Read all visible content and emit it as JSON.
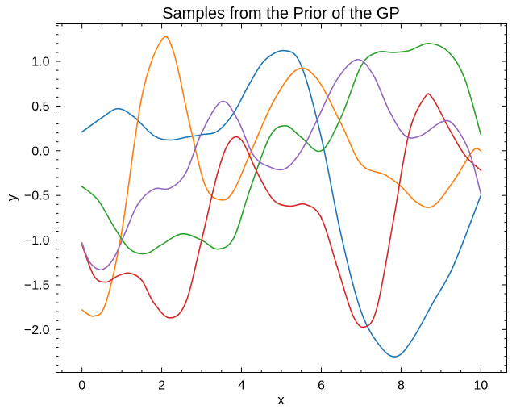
{
  "chart_data": {
    "type": "line",
    "title": "Samples from the Prior of the GP",
    "xlabel": "x",
    "ylabel": "y",
    "xlim": [
      -0.65,
      10.65
    ],
    "ylim": [
      -2.48,
      1.42
    ],
    "xticks": [
      0,
      2,
      4,
      6,
      8,
      10
    ],
    "xtick_labels": [
      "0",
      "2",
      "4",
      "6",
      "8",
      "10"
    ],
    "yticks": [
      -2.0,
      -1.5,
      -1.0,
      -0.5,
      0.0,
      0.5,
      1.0
    ],
    "ytick_labels": [
      "−2.0",
      "−1.5",
      "−1.0",
      "−0.5",
      "0.0",
      "0.5",
      "1.0"
    ],
    "grid": false,
    "legend": "none",
    "series": [
      {
        "color": "#1f77b4",
        "x": [
          0,
          0.5,
          0.9,
          1.3,
          1.8,
          2.2,
          2.6,
          3.0,
          3.4,
          3.8,
          4.2,
          4.6,
          5.1,
          5.5,
          6.0,
          6.5,
          7.0,
          7.5,
          7.9,
          8.3,
          8.8,
          9.3,
          10.0
        ],
        "y": [
          0.21,
          0.37,
          0.47,
          0.38,
          0.17,
          0.12,
          0.15,
          0.18,
          0.22,
          0.42,
          0.75,
          1.02,
          1.12,
          0.95,
          0.15,
          -0.95,
          -1.8,
          -2.2,
          -2.3,
          -2.1,
          -1.7,
          -1.3,
          -0.5
        ]
      },
      {
        "color": "#ff7f0e",
        "x": [
          0,
          0.3,
          0.6,
          1.0,
          1.5,
          2.0,
          2.3,
          2.7,
          3.1,
          3.5,
          3.8,
          4.2,
          4.8,
          5.4,
          5.9,
          6.5,
          7.0,
          7.6,
          8.0,
          8.4,
          8.8,
          9.3,
          9.8,
          10.0
        ],
        "y": [
          -1.78,
          -1.85,
          -1.7,
          -0.9,
          0.6,
          1.24,
          1.1,
          0.3,
          -0.4,
          -0.55,
          -0.45,
          -0.05,
          0.55,
          0.91,
          0.8,
          0.3,
          -0.15,
          -0.27,
          -0.4,
          -0.58,
          -0.62,
          -0.35,
          0.0,
          0.0
        ]
      },
      {
        "color": "#2ca02c",
        "x": [
          0,
          0.4,
          0.8,
          1.2,
          1.6,
          2.0,
          2.5,
          3.0,
          3.4,
          3.8,
          4.2,
          4.7,
          5.1,
          5.5,
          6.0,
          6.5,
          7.0,
          7.4,
          7.8,
          8.2,
          8.7,
          9.2,
          9.6,
          10.0
        ],
        "y": [
          -0.4,
          -0.55,
          -0.85,
          -1.1,
          -1.15,
          -1.05,
          -0.93,
          -1.0,
          -1.1,
          -0.98,
          -0.45,
          0.15,
          0.28,
          0.15,
          0.0,
          0.38,
          0.95,
          1.1,
          1.1,
          1.12,
          1.2,
          1.1,
          0.8,
          0.18
        ]
      },
      {
        "color": "#d62728",
        "x": [
          0,
          0.3,
          0.6,
          0.9,
          1.2,
          1.5,
          1.8,
          2.2,
          2.6,
          3.0,
          3.4,
          3.7,
          4.0,
          4.4,
          4.8,
          5.2,
          5.6,
          6.0,
          6.4,
          6.8,
          7.1,
          7.4,
          7.8,
          8.2,
          8.6,
          8.8,
          9.2,
          9.6,
          10.0
        ],
        "y": [
          -1.05,
          -1.4,
          -1.47,
          -1.4,
          -1.37,
          -1.45,
          -1.7,
          -1.87,
          -1.7,
          -1.0,
          -0.25,
          0.1,
          0.12,
          -0.25,
          -0.55,
          -0.62,
          -0.6,
          -0.75,
          -1.3,
          -1.85,
          -1.97,
          -1.75,
          -0.8,
          0.2,
          0.6,
          0.58,
          0.25,
          -0.05,
          -0.22
        ]
      },
      {
        "color": "#9467bd",
        "x": [
          0,
          0.2,
          0.5,
          0.8,
          1.1,
          1.4,
          1.8,
          2.2,
          2.6,
          3.0,
          3.5,
          3.9,
          4.3,
          4.7,
          5.1,
          5.5,
          5.9,
          6.4,
          6.9,
          7.3,
          7.7,
          8.1,
          8.5,
          9.0,
          9.3,
          9.7,
          10.0
        ],
        "y": [
          -1.03,
          -1.25,
          -1.33,
          -1.2,
          -0.9,
          -0.6,
          -0.43,
          -0.42,
          -0.25,
          0.2,
          0.55,
          0.35,
          -0.05,
          -0.18,
          -0.2,
          0.0,
          0.35,
          0.8,
          1.02,
          0.85,
          0.45,
          0.17,
          0.17,
          0.32,
          0.3,
          0.0,
          -0.48
        ]
      }
    ]
  }
}
